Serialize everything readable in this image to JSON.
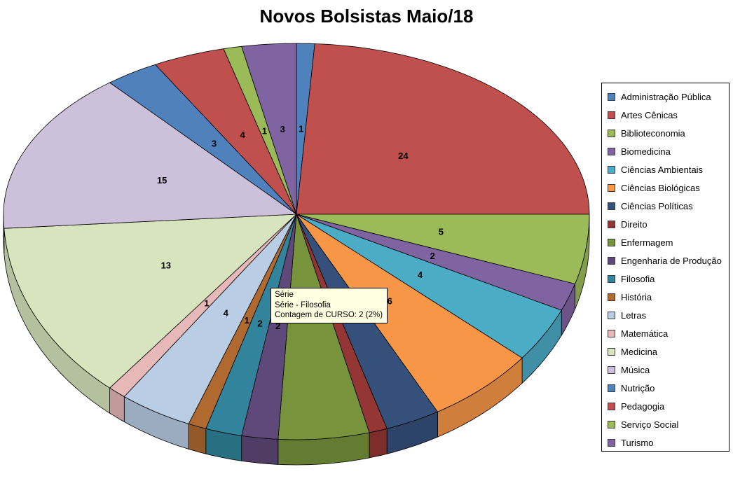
{
  "title": "Novos Bolsistas Maio/18",
  "chart_data": {
    "type": "pie",
    "title": "Novos Bolsistas Maio/18",
    "series_name": "Série",
    "data_labels": "value",
    "legend_position": "right",
    "style": "3d-pie",
    "total": 100,
    "categories": [
      "Administração Pública",
      "Artes Cênicas",
      "Biblioteconomia",
      "Biomedicina",
      "Ciências Ambientais",
      "Ciências Biológicas",
      "Ciências Políticas",
      "Direito",
      "Enfermagem",
      "Engenharia de Produção",
      "Filosofia",
      "História",
      "Letras",
      "Matemática",
      "Medicina",
      "Música",
      "Nutrição",
      "Pedagogia",
      "Serviço Social",
      "Turismo"
    ],
    "values": [
      1,
      24,
      5,
      2,
      4,
      6,
      3,
      1,
      5,
      2,
      2,
      1,
      4,
      1,
      13,
      15,
      3,
      4,
      1,
      3
    ],
    "colors": [
      "#4F81BD",
      "#C0504D",
      "#9BBB59",
      "#8064A2",
      "#4BACC6",
      "#F79646",
      "#35507B",
      "#943634",
      "#77933C",
      "#5F497A",
      "#31849B",
      "#B06A30",
      "#B9CDE5",
      "#E6B9B8",
      "#D7E4BD",
      "#CCC0DA",
      "#4F81BD",
      "#C0504D",
      "#9BBB59",
      "#8064A2"
    ],
    "label_visible": [
      true,
      true,
      true,
      true,
      true,
      true,
      false,
      false,
      false,
      true,
      true,
      true,
      true,
      true,
      true,
      true,
      true,
      true,
      true,
      true
    ]
  },
  "tooltip": {
    "lines": [
      "Série",
      "Série - Filosofia",
      "Contagem de CURSO: 2 (2%)"
    ],
    "hovered_category": "Filosofia",
    "bg_color": "#FFFFE1"
  }
}
